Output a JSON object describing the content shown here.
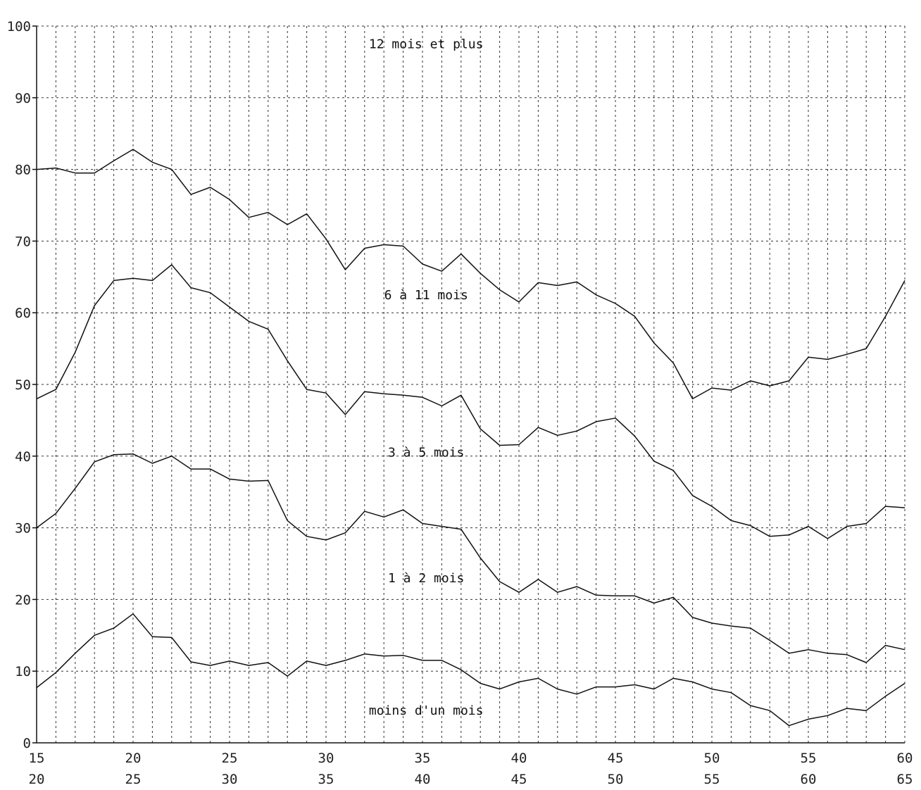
{
  "chart_data": {
    "type": "line",
    "title": "",
    "xlabel": "",
    "ylabel": "",
    "xlim": [
      15,
      60
    ],
    "ylim": [
      0,
      100
    ],
    "grid": true,
    "y_ticks": [
      0,
      10,
      20,
      30,
      40,
      50,
      60,
      70,
      80,
      90,
      100
    ],
    "x_ticks_top": [
      15,
      20,
      25,
      30,
      35,
      40,
      45,
      50,
      55,
      60
    ],
    "x_ticks_bottom": [
      20,
      25,
      30,
      35,
      40,
      45,
      50,
      55,
      60,
      65
    ],
    "band_labels": [
      {
        "text": "12 mois et plus",
        "x": 33,
        "y": 97.5
      },
      {
        "text": "6 à 11 mois",
        "x": 33,
        "y": 62.5
      },
      {
        "text": "3 à 5 mois",
        "x": 33,
        "y": 40.5
      },
      {
        "text": "1 à 2 mois",
        "x": 33,
        "y": 23
      },
      {
        "text": "moins d'un mois",
        "x": 33,
        "y": 4.5
      }
    ],
    "x": [
      15,
      16,
      17,
      18,
      19,
      20,
      21,
      22,
      23,
      24,
      25,
      26,
      27,
      28,
      29,
      30,
      31,
      32,
      33,
      34,
      35,
      36,
      37,
      38,
      39,
      40,
      41,
      42,
      43,
      44,
      45,
      46,
      47,
      48,
      49,
      50,
      51,
      52,
      53,
      54,
      55,
      56,
      57,
      58,
      59,
      60
    ],
    "series": [
      {
        "values": [
          80,
          80.2,
          79.5,
          79.5,
          81.2,
          82.8,
          81,
          80,
          76.5,
          77.5,
          75.8,
          73.3,
          74,
          72.3,
          73.8,
          70.3,
          66,
          69,
          69.5,
          69.3,
          66.8,
          65.8,
          68.2,
          65.5,
          63.2,
          61.5,
          64.2,
          63.8,
          64.3,
          62.5,
          61.3,
          59.5,
          55.8,
          53,
          48,
          49.5,
          49.2,
          50.5,
          49.8,
          50.5,
          53.8,
          53.5,
          54.2,
          55,
          59.5,
          64.5
        ]
      },
      {
        "values": [
          48,
          49.3,
          54.5,
          61,
          64.5,
          64.8,
          64.5,
          66.7,
          63.5,
          62.8,
          60.8,
          58.8,
          57.7,
          53.3,
          49.3,
          48.8,
          45.8,
          49,
          48.7,
          48.5,
          48.2,
          47,
          48.5,
          43.8,
          41.5,
          41.6,
          44,
          42.9,
          43.5,
          44.8,
          45.3,
          42.8,
          39.3,
          38,
          34.5,
          33,
          31,
          30.3,
          28.8,
          29,
          30.2,
          28.5,
          30.2,
          30.6,
          33,
          32.8
        ]
      },
      {
        "values": [
          30,
          32,
          35.5,
          39.2,
          40.2,
          40.3,
          39,
          40,
          38.2,
          38.2,
          36.8,
          36.5,
          36.6,
          31,
          28.8,
          28.3,
          29.3,
          32.3,
          31.5,
          32.5,
          30.6,
          30.2,
          29.8,
          25.8,
          22.5,
          21,
          22.8,
          21,
          21.8,
          20.6,
          20.5,
          20.5,
          19.5,
          20.3,
          17.5,
          16.7,
          16.3,
          16,
          14.3,
          12.5,
          13,
          12.5,
          12.3,
          11.2,
          13.6,
          13
        ]
      },
      {
        "values": [
          7.7,
          9.8,
          12.5,
          15,
          16,
          18,
          14.8,
          14.7,
          11.3,
          10.8,
          11.4,
          10.8,
          11.2,
          9.3,
          11.4,
          10.8,
          11.5,
          12.4,
          12.1,
          12.2,
          11.5,
          11.5,
          10.2,
          8.3,
          7.5,
          8.5,
          9,
          7.5,
          6.8,
          7.8,
          7.8,
          8.1,
          7.5,
          9,
          8.5,
          7.5,
          7,
          5.2,
          4.5,
          2.4,
          3.3,
          3.8,
          4.8,
          4.5,
          6.5,
          8.3
        ]
      }
    ]
  }
}
